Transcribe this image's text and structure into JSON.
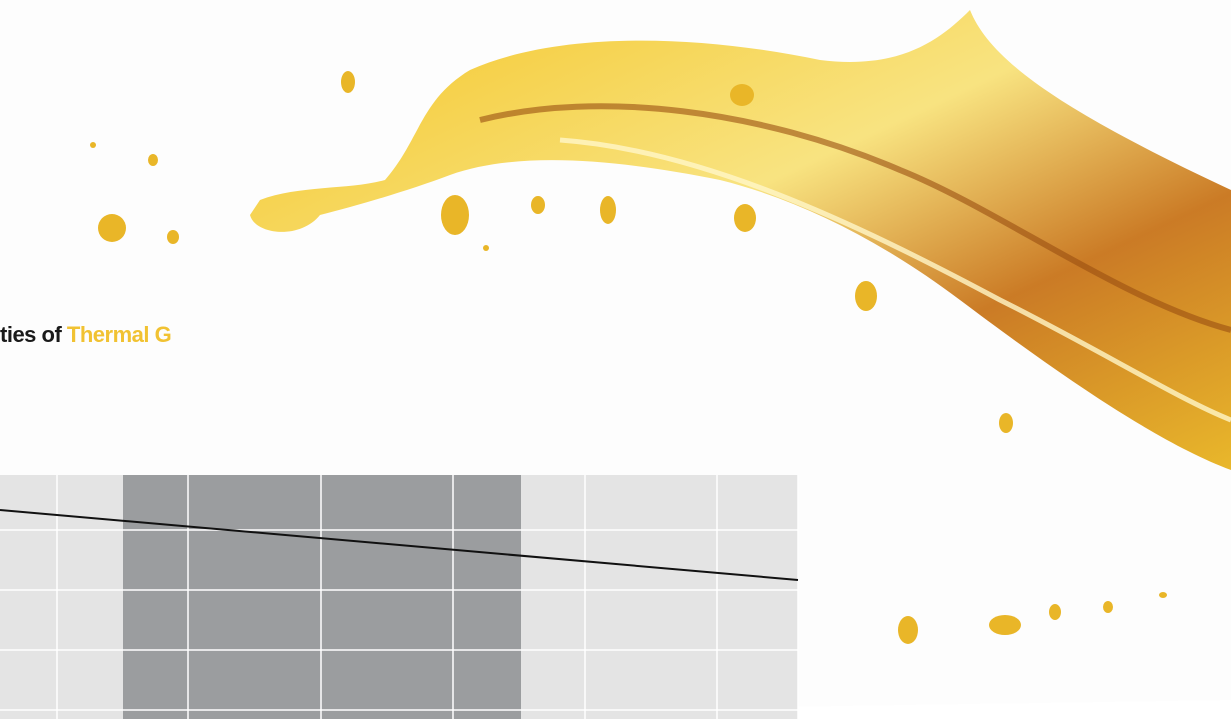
{
  "heading": {
    "dark": "ties of",
    "accent": "Thermal G"
  }
}
